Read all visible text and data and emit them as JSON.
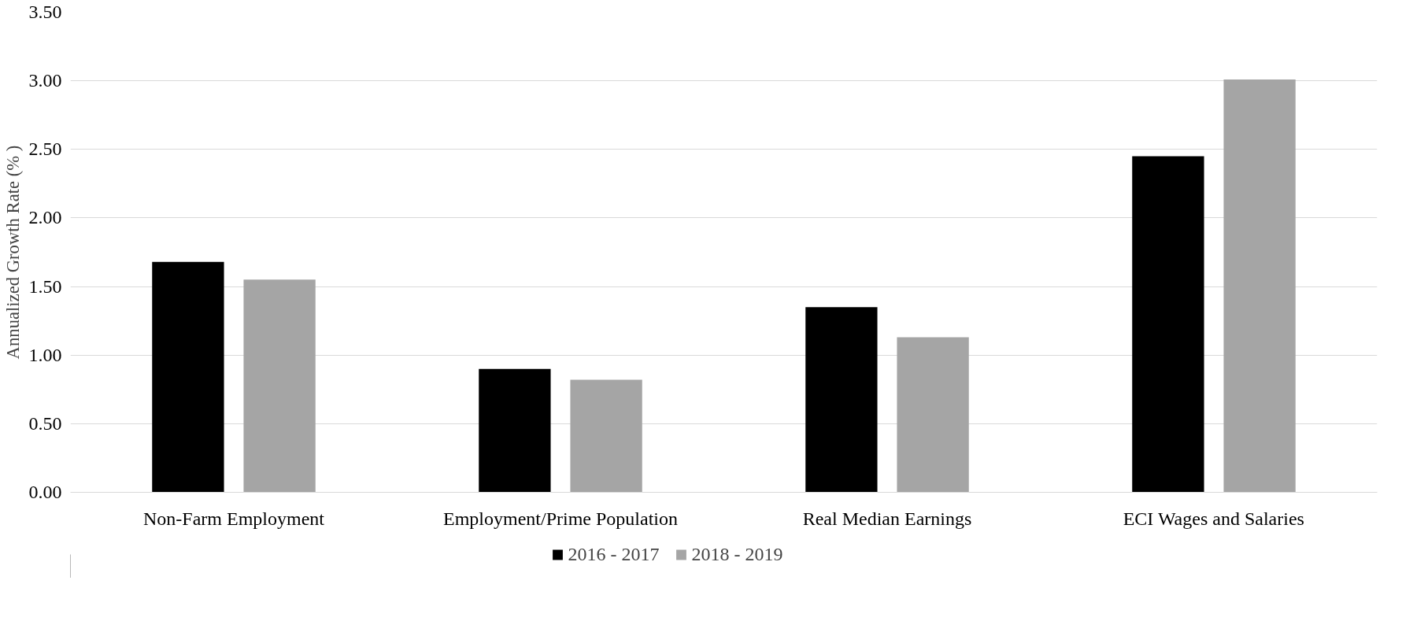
{
  "chart_data": {
    "type": "bar",
    "ylabel": "Annualized Growth Rate (% )",
    "categories": [
      "Non-Farm Employment",
      "Employment/Prime Population",
      "Real Median Earnings",
      "ECI Wages and Salaries"
    ],
    "series": [
      {
        "name": "2016 - 2017",
        "color": "#000000",
        "values": [
          1.68,
          0.9,
          1.35,
          2.45
        ]
      },
      {
        "name": "2018 - 2019",
        "color": "#a5a5a5",
        "values": [
          1.55,
          0.82,
          1.13,
          3.01
        ]
      }
    ],
    "ylim": [
      0,
      3.5
    ],
    "yticks": [
      {
        "value": 0,
        "label": "0.00"
      },
      {
        "value": 0.5,
        "label": "0.50"
      },
      {
        "value": 1,
        "label": "1.00"
      },
      {
        "value": 1.5,
        "label": "1.50"
      },
      {
        "value": 2,
        "label": "2.00"
      },
      {
        "value": 2.5,
        "label": "2.50"
      },
      {
        "value": 3,
        "label": "3.00"
      },
      {
        "value": 3.5,
        "label": "3.50"
      }
    ],
    "grid": "y",
    "legend": "bottom"
  }
}
